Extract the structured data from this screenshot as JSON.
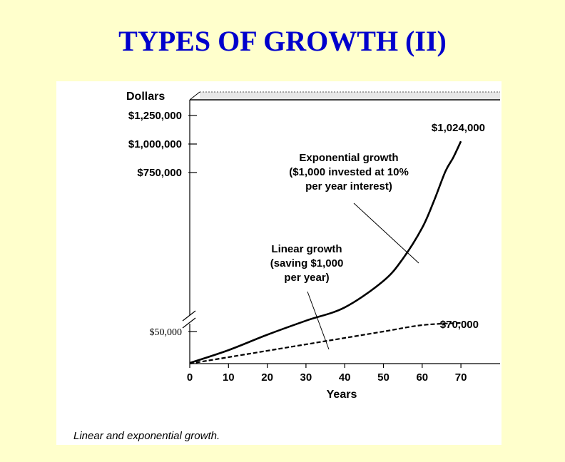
{
  "slide": {
    "title": "TYPES OF GROWTH (II)",
    "background": "#ffffcc",
    "title_color": "#0000cc"
  },
  "figure": {
    "caption": "Linear and exponential growth."
  },
  "chart_data": {
    "type": "line",
    "ylabel": "Dollars",
    "xlabel": "Years",
    "x_ticks": [
      "0",
      "10",
      "20",
      "30",
      "40",
      "50",
      "60",
      "70"
    ],
    "xlim": [
      0,
      80
    ],
    "y_ticks": [
      {
        "value": 50000,
        "label": "$50,000"
      },
      {
        "value": 750000,
        "label": "$750,000"
      },
      {
        "value": 1000000,
        "label": "$1,000,000"
      },
      {
        "value": 1250000,
        "label": "$1,250,000"
      }
    ],
    "y_axis_break": true,
    "series": [
      {
        "name": "Exponential growth",
        "style": "solid",
        "x": [
          0,
          10,
          20,
          30,
          40,
          50,
          55,
          60,
          63,
          66,
          68,
          70
        ],
        "y": [
          1000,
          21000,
          45000,
          80000,
          140000,
          260000,
          360000,
          500000,
          620000,
          760000,
          880000,
          1024000
        ]
      },
      {
        "name": "Linear growth",
        "style": "dashed",
        "x": [
          0,
          10,
          20,
          30,
          40,
          50,
          60,
          70
        ],
        "y": [
          0,
          10000,
          20000,
          30000,
          40000,
          50000,
          60000,
          70000
        ]
      }
    ],
    "annotations": [
      {
        "id": "exp-end",
        "text": "$1,024,000"
      },
      {
        "id": "lin-end",
        "text": "$70,000"
      },
      {
        "id": "exp-label",
        "lines": [
          "Exponential growth",
          "($1,000 invested at 10%",
          "per year interest)"
        ]
      },
      {
        "id": "lin-label",
        "lines": [
          "Linear growth",
          "(saving $1,000",
          "per year)"
        ]
      }
    ]
  }
}
